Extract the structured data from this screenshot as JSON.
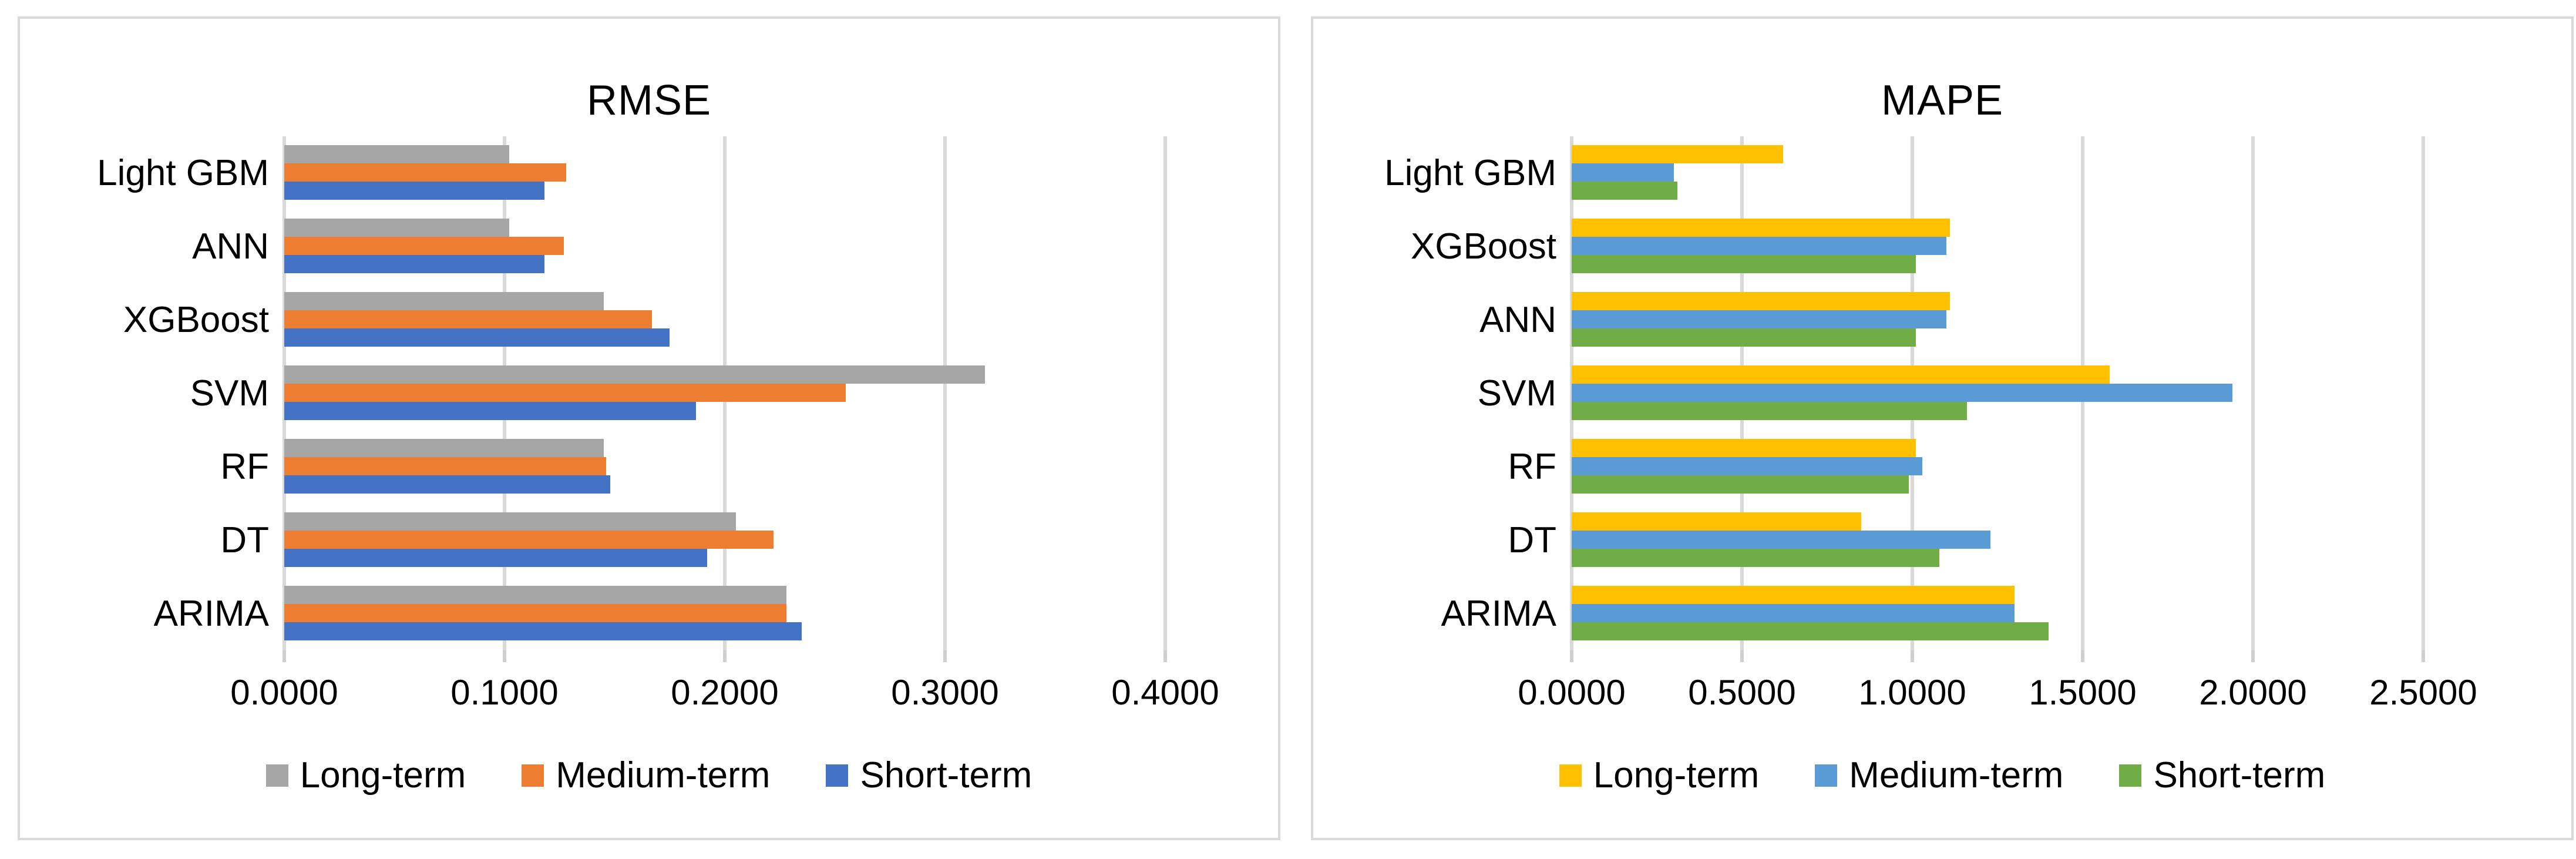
{
  "chart_data": [
    {
      "type": "bar",
      "orientation": "horizontal",
      "title": "RMSE",
      "categories": [
        "Light GBM",
        "ANN",
        "XGBoost",
        "SVM",
        "RF",
        "DT",
        "ARIMA"
      ],
      "series": [
        {
          "name": "Long-term",
          "color": "#a6a6a6",
          "values": [
            0.102,
            0.102,
            0.145,
            0.318,
            0.145,
            0.205,
            0.228
          ]
        },
        {
          "name": "Medium-term",
          "color": "#ed7d31",
          "values": [
            0.128,
            0.127,
            0.167,
            0.255,
            0.146,
            0.222,
            0.228
          ]
        },
        {
          "name": "Short-term",
          "color": "#4472c4",
          "values": [
            0.118,
            0.118,
            0.175,
            0.187,
            0.148,
            0.192,
            0.235
          ]
        }
      ],
      "xticks": [
        "0.0000",
        "0.1000",
        "0.2000",
        "0.3000",
        "0.4000"
      ],
      "xmax": 0.4,
      "xmin": 0.0,
      "grid": true,
      "legend_position": "bottom"
    },
    {
      "type": "bar",
      "orientation": "horizontal",
      "title": "MAPE",
      "categories": [
        "Light GBM",
        "XGBoost",
        "ANN",
        "SVM",
        "RF",
        "DT",
        "ARIMA"
      ],
      "series": [
        {
          "name": "Long-term",
          "color": "#ffc000",
          "values": [
            0.62,
            1.11,
            1.11,
            1.58,
            1.01,
            0.85,
            1.3
          ]
        },
        {
          "name": "Medium-term",
          "color": "#5b9bd5",
          "values": [
            0.3,
            1.1,
            1.1,
            1.94,
            1.03,
            1.23,
            1.3
          ]
        },
        {
          "name": "Short-term",
          "color": "#70ad47",
          "values": [
            0.31,
            1.01,
            1.01,
            1.16,
            0.99,
            1.08,
            1.4
          ]
        }
      ],
      "xticks": [
        "0.0000",
        "0.5000",
        "1.0000",
        "1.5000",
        "2.0000",
        "2.5000"
      ],
      "xmax": 2.5,
      "xmin": 0.0,
      "grid": true,
      "legend_position": "bottom"
    }
  ]
}
